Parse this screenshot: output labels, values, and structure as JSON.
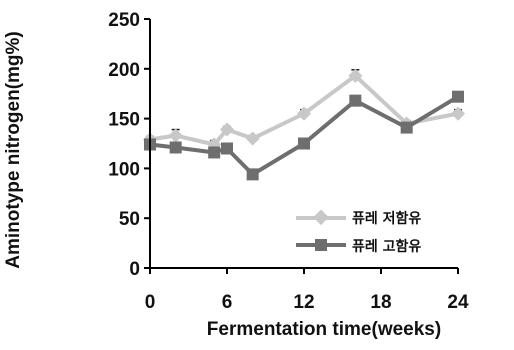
{
  "chart_data": {
    "type": "line",
    "xlabel": "Fermentation time(weeks)",
    "ylabel": "Aminotype nitrogen(mg%)",
    "xlim": [
      0,
      24
    ],
    "ylim": [
      0,
      250
    ],
    "xticks": [
      0,
      6,
      12,
      18,
      24
    ],
    "yticks": [
      0,
      50,
      100,
      150,
      200,
      250
    ],
    "grid": false,
    "legend_position": "bottom-right",
    "series": [
      {
        "name": "퓨레 저함유",
        "color": "#c8c8c8",
        "marker": "diamond",
        "x": [
          0,
          2,
          5,
          6,
          8,
          12,
          16,
          20,
          24
        ],
        "y": [
          129,
          133,
          124,
          139,
          130,
          155,
          193,
          145,
          155
        ],
        "error": [
          3,
          6,
          4,
          3,
          3,
          4,
          6,
          3,
          4
        ]
      },
      {
        "name": "퓨레 고함유",
        "color": "#6e6e6e",
        "marker": "square",
        "x": [
          0,
          2,
          5,
          6,
          8,
          12,
          16,
          20,
          24
        ],
        "y": [
          124,
          121,
          116,
          120,
          94,
          125,
          168,
          141,
          172
        ],
        "error": [
          3,
          3,
          3,
          3,
          2,
          3,
          5,
          3,
          3
        ]
      }
    ]
  }
}
